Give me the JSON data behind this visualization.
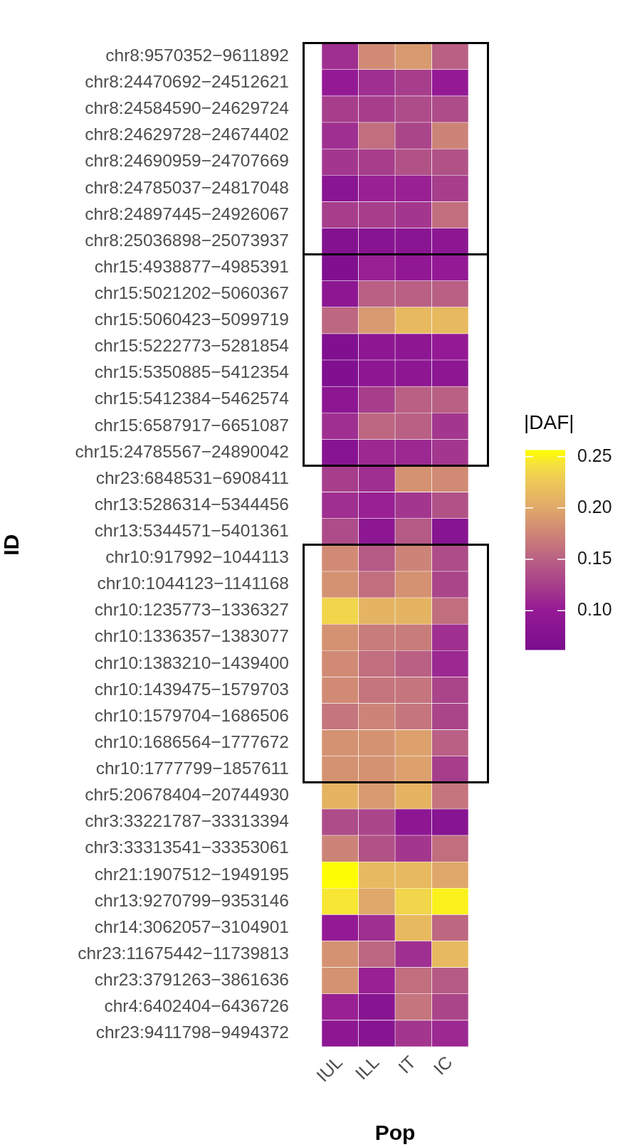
{
  "chart_data": {
    "type": "heatmap",
    "xlabel": "Pop",
    "ylabel": "ID",
    "clabel": "|DAF|",
    "categories": [
      "IUL",
      "ILL",
      "IT",
      "IC"
    ],
    "y_categories": [
      "chr8:9570352−9611892",
      "chr8:24470692−24512621",
      "chr8:24584590−24629724",
      "chr8:24629728−24674402",
      "chr8:24690959−24707669",
      "chr8:24785037−24817048",
      "chr8:24897445−24926067",
      "chr8:25036898−25073937",
      "chr15:4938877−4985391",
      "chr15:5021202−5060367",
      "chr15:5060423−5099719",
      "chr15:5222773−5281854",
      "chr15:5350885−5412354",
      "chr15:5412384−5462574",
      "chr15:6587917−6651087",
      "chr15:24785567−24890042",
      "chr23:6848531−6908411",
      "chr13:5286314−5344456",
      "chr13:5344571−5401361",
      "chr10:917992−1044113",
      "chr10:1044123−1141168",
      "chr10:1235773−1336327",
      "chr10:1336357−1383077",
      "chr10:1383210−1439400",
      "chr10:1439475−1579703",
      "chr10:1579704−1686506",
      "chr10:1686564−1777672",
      "chr10:1777799−1857611",
      "chr5:20678404−20744930",
      "chr3:33221787−33313394",
      "chr3:33313541−33353061",
      "chr21:1907512−1949195",
      "chr13:9270799−9353146",
      "chr14:3062057−3104901",
      "chr23:11675442−11739813",
      "chr23:3791263−3861636",
      "chr4:6402404−6436726",
      "chr23:9411798−9494372"
    ],
    "cells": [
      [
        0.115,
        0.18,
        0.19,
        0.15
      ],
      [
        0.1,
        0.115,
        0.125,
        0.1
      ],
      [
        0.125,
        0.125,
        0.135,
        0.135
      ],
      [
        0.115,
        0.16,
        0.13,
        0.175
      ],
      [
        0.12,
        0.125,
        0.14,
        0.14
      ],
      [
        0.085,
        0.105,
        0.105,
        0.125
      ],
      [
        0.125,
        0.125,
        0.12,
        0.16
      ],
      [
        0.075,
        0.08,
        0.085,
        0.09
      ],
      [
        0.07,
        0.105,
        0.095,
        0.1
      ],
      [
        0.09,
        0.15,
        0.15,
        0.15
      ],
      [
        0.155,
        0.19,
        0.215,
        0.215
      ],
      [
        0.07,
        0.09,
        0.09,
        0.1
      ],
      [
        0.07,
        0.09,
        0.09,
        0.09
      ],
      [
        0.09,
        0.125,
        0.15,
        0.15
      ],
      [
        0.115,
        0.155,
        0.15,
        0.12
      ],
      [
        0.08,
        0.11,
        0.11,
        0.12
      ],
      [
        0.125,
        0.115,
        0.185,
        0.18
      ],
      [
        0.115,
        0.105,
        0.12,
        0.14
      ],
      [
        0.135,
        0.09,
        0.145,
        0.08
      ],
      [
        0.18,
        0.145,
        0.175,
        0.135
      ],
      [
        0.185,
        0.16,
        0.185,
        0.13
      ],
      [
        0.235,
        0.21,
        0.21,
        0.16
      ],
      [
        0.185,
        0.17,
        0.17,
        0.115
      ],
      [
        0.18,
        0.16,
        0.15,
        0.11
      ],
      [
        0.18,
        0.165,
        0.165,
        0.13
      ],
      [
        0.165,
        0.175,
        0.165,
        0.13
      ],
      [
        0.185,
        0.185,
        0.195,
        0.15
      ],
      [
        0.185,
        0.185,
        0.195,
        0.125
      ],
      [
        0.21,
        0.19,
        0.21,
        0.165
      ],
      [
        0.135,
        0.13,
        0.09,
        0.08
      ],
      [
        0.175,
        0.14,
        0.12,
        0.16
      ],
      [
        0.255,
        0.215,
        0.215,
        0.2
      ],
      [
        0.245,
        0.2,
        0.235,
        0.25
      ],
      [
        0.1,
        0.115,
        0.215,
        0.155
      ],
      [
        0.185,
        0.155,
        0.115,
        0.215
      ],
      [
        0.185,
        0.105,
        0.16,
        0.145
      ],
      [
        0.105,
        0.08,
        0.165,
        0.13
      ],
      [
        0.09,
        0.08,
        0.12,
        0.11
      ]
    ],
    "clim": [
      0.062,
      0.256
    ],
    "cticks": [
      {
        "value": 0.1,
        "label": "0.10"
      },
      0.15,
      {
        "value": 0.2,
        "label": "0.20"
      },
      0.25
    ]
  }
}
